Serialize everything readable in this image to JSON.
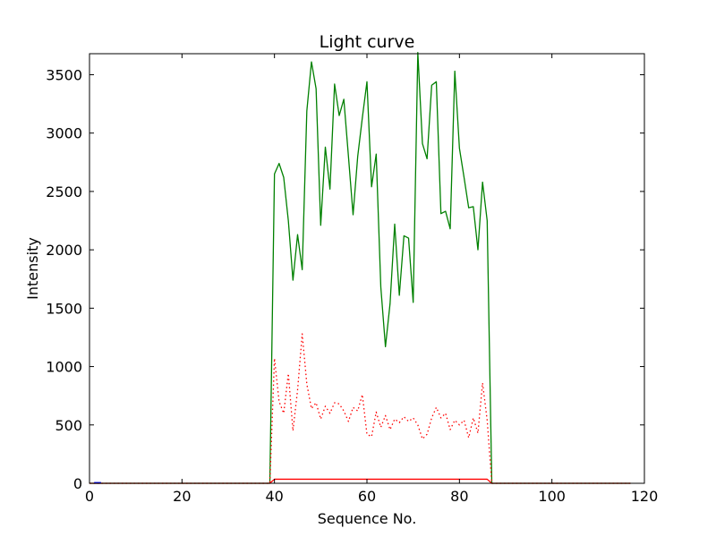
{
  "chart_data": {
    "type": "line",
    "title": "Light curve",
    "xlabel": "Sequence No.",
    "ylabel": "Intensity",
    "xlim": [
      0,
      120
    ],
    "ylim": [
      0,
      3680
    ],
    "xticks": [
      0,
      20,
      40,
      60,
      80,
      100,
      120
    ],
    "yticks": [
      0,
      500,
      1000,
      1500,
      2000,
      2500,
      3000,
      3500
    ],
    "grid": false,
    "series": [
      {
        "color": "#008000",
        "style": "solid",
        "x": [
          0,
          39,
          40,
          41,
          42,
          43,
          44,
          45,
          46,
          47,
          48,
          49,
          50,
          51,
          52,
          53,
          54,
          55,
          56,
          57,
          58,
          59,
          60,
          61,
          62,
          63,
          64,
          65,
          66,
          67,
          68,
          69,
          70,
          71,
          72,
          73,
          74,
          75,
          76,
          77,
          78,
          79,
          80,
          81,
          82,
          83,
          84,
          85,
          86,
          87,
          117
        ],
        "y": [
          0,
          0,
          2650,
          2740,
          2620,
          2250,
          1740,
          2130,
          1830,
          3190,
          3610,
          3380,
          2210,
          2880,
          2520,
          3420,
          3150,
          3290,
          2800,
          2300,
          2800,
          3130,
          3440,
          2540,
          2820,
          1680,
          1170,
          1540,
          2220,
          1610,
          2120,
          2100,
          1550,
          3690,
          2910,
          2780,
          3410,
          3440,
          2310,
          2330,
          2180,
          3530,
          2870,
          2620,
          2360,
          2370,
          2000,
          2580,
          2250,
          0,
          0
        ]
      },
      {
        "color": "#ff0000",
        "style": "dotted",
        "x": [
          0,
          39,
          40,
          41,
          42,
          43,
          44,
          45,
          46,
          47,
          48,
          49,
          50,
          51,
          52,
          53,
          54,
          55,
          56,
          57,
          58,
          59,
          60,
          61,
          62,
          63,
          64,
          65,
          66,
          67,
          68,
          69,
          70,
          71,
          72,
          73,
          74,
          75,
          76,
          77,
          78,
          79,
          80,
          81,
          82,
          83,
          84,
          85,
          86,
          87,
          117
        ],
        "y": [
          0,
          0,
          1070,
          700,
          600,
          940,
          450,
          800,
          1280,
          850,
          640,
          690,
          550,
          660,
          600,
          690,
          680,
          620,
          530,
          650,
          620,
          760,
          420,
          400,
          610,
          480,
          580,
          460,
          550,
          520,
          570,
          530,
          560,
          500,
          380,
          420,
          560,
          650,
          560,
          600,
          460,
          540,
          500,
          540,
          390,
          560,
          430,
          860,
          540,
          0,
          0
        ]
      },
      {
        "color": "#ff0000",
        "style": "solid",
        "x": [
          0,
          39,
          40,
          86,
          87,
          117
        ],
        "y": [
          0,
          0,
          35,
          35,
          0,
          0
        ]
      },
      {
        "color": "#0000ff",
        "style": "solid",
        "x": [
          1,
          2.5
        ],
        "y": [
          6,
          6
        ]
      }
    ]
  }
}
